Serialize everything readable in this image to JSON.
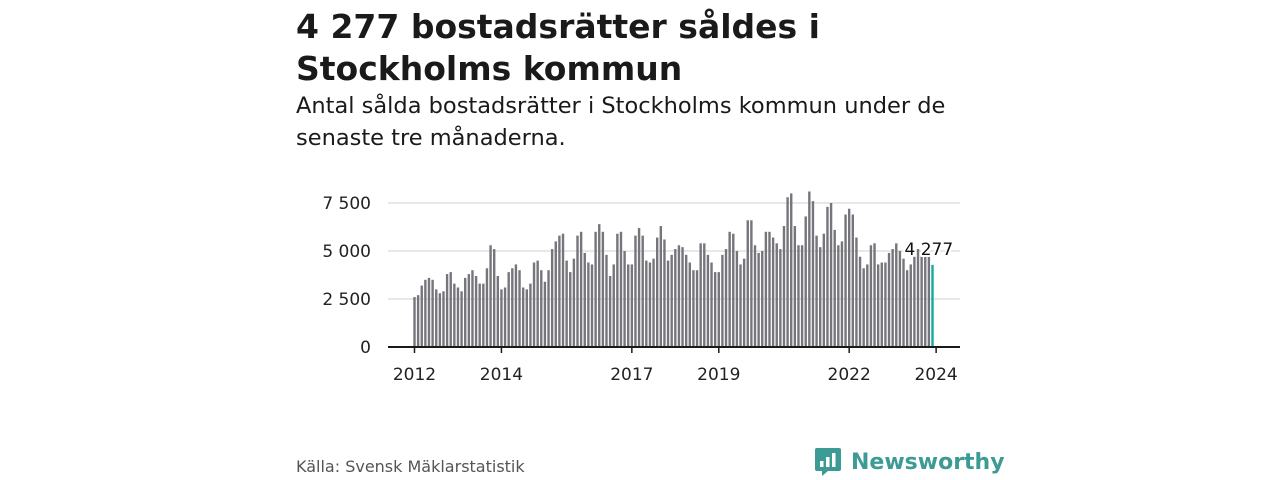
{
  "title": "4 277 bostadsrätter såldes i Stockholms kommun",
  "subtitle": "Antal sålda bostadsrätter i Stockholms kommun under de senaste tre månaderna.",
  "source": "Källa: Svensk Mäklarstatistik",
  "brand": {
    "name": "Newsworthy",
    "color": "#3d9b95",
    "icon": "newsworthy-logo-icon"
  },
  "colors": {
    "bar": "#76757c",
    "highlight": "#17a8a0",
    "grid": "#d9d9d9",
    "axis": "#1a1a1a"
  },
  "chart_data": {
    "type": "bar",
    "title": "",
    "xlabel": "",
    "ylabel": "",
    "ylim": [
      0,
      7500
    ],
    "y_ticks": [
      0,
      2500,
      5000,
      7500
    ],
    "y_tick_labels": [
      "0",
      "2 500",
      "5 000",
      "7 500"
    ],
    "x_ticks": [
      {
        "label": "2012",
        "index": 0
      },
      {
        "label": "2014",
        "index": 24
      },
      {
        "label": "2017",
        "index": 60
      },
      {
        "label": "2019",
        "index": 84
      },
      {
        "label": "2022",
        "index": 120
      },
      {
        "label": "2024",
        "index": 144
      }
    ],
    "grid": true,
    "series": [
      {
        "values": [
          2600,
          2700,
          3200,
          3500,
          3600,
          3500,
          3000,
          2800,
          2900,
          3800,
          3900,
          3300,
          3100,
          2900,
          3600,
          3800,
          4000,
          3700,
          3300,
          3300,
          4100,
          5300,
          5100,
          3700,
          3000,
          3100,
          3900,
          4100,
          4300,
          4000,
          3100,
          3000,
          3300,
          4400,
          4500,
          4000,
          3400,
          4000,
          5100,
          5500,
          5800,
          5900,
          4500,
          3900,
          4600,
          5800,
          6000,
          4900,
          4400,
          4300,
          6000,
          6400,
          6000,
          4800,
          3700,
          4300,
          5900,
          6000,
          5000,
          4300,
          4300,
          5800,
          6200,
          5800,
          4500,
          4400,
          4600,
          5700,
          6300,
          5600,
          4500,
          4800,
          5100,
          5300,
          5200,
          4800,
          4400,
          4000,
          4000,
          5400,
          5400,
          4800,
          4400,
          3900,
          3900,
          4800,
          5100,
          6000,
          5900,
          5000,
          4300,
          4600,
          6600,
          6600,
          5300,
          4900,
          5000,
          6000,
          6000,
          5700,
          5400,
          5100,
          6300,
          7800,
          8000,
          6300,
          5300,
          5300,
          6800,
          8100,
          7600,
          5800,
          5200,
          5900,
          7300,
          7500,
          6100,
          5300,
          5500,
          6900,
          7200,
          6900,
          5700,
          4700,
          4100,
          4300,
          5300,
          5400,
          4300,
          4400,
          4400,
          4900,
          5100,
          5400,
          5000,
          4600,
          4000,
          4300,
          4700,
          5100,
          4800,
          4700,
          4700,
          4277
        ],
        "last_value_label": "4 277"
      }
    ]
  }
}
